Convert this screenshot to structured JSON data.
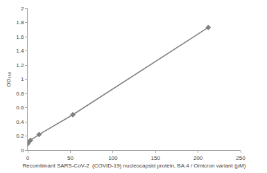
{
  "chart_data": {
    "type": "line",
    "x_label": "Recombinant SARS-CoV-2  (COVID-19) nucleocapsid protein, BA.4 / Omicron variant (pM)",
    "y_label": "OD₄₅₀",
    "x": [
      0,
      0.83,
      3.3,
      13.3,
      53,
      212
    ],
    "values": [
      0.09,
      0.11,
      0.14,
      0.22,
      0.5,
      1.73
    ],
    "color": "#7f7f7f",
    "marker": "diamond",
    "line_style": "solid",
    "xlim": [
      0,
      250
    ],
    "xticks": [
      0,
      50,
      100,
      150,
      200,
      250
    ],
    "ylim": [
      0,
      2
    ],
    "yticks": [
      0,
      0.2,
      0.4,
      0.6,
      0.8,
      1,
      1.2,
      1.4,
      1.6,
      1.8,
      2
    ],
    "grid": false
  }
}
